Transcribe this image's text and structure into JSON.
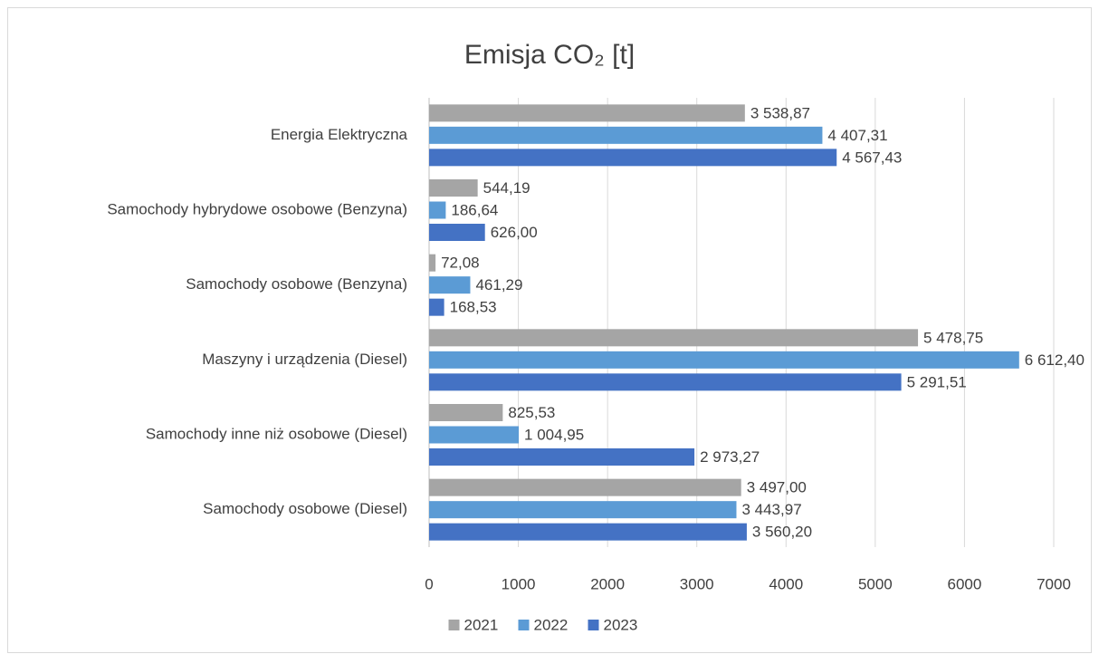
{
  "chart_data": {
    "type": "bar",
    "orientation": "horizontal",
    "title": "Emisja CO₂ [t]",
    "categories": [
      "Energia Elektryczna",
      "Samochody hybrydowe osobowe (Benzyna)",
      "Samochody osobowe (Benzyna)",
      "Maszyny i urządzenia (Diesel)",
      "Samochody inne niż osobowe (Diesel)",
      "Samochody osobowe (Diesel)"
    ],
    "series": [
      {
        "name": "2021",
        "color": "#a5a5a5",
        "values": [
          3538.87,
          544.19,
          72.08,
          5478.75,
          825.53,
          3497.0
        ],
        "value_labels": [
          "3 538,87",
          "544,19",
          "72,08",
          "5 478,75",
          "825,53",
          "3 497,00"
        ]
      },
      {
        "name": "2022",
        "color": "#5b9bd5",
        "values": [
          4407.31,
          186.64,
          461.29,
          6612.4,
          1004.95,
          3443.97
        ],
        "value_labels": [
          "4 407,31",
          "186,64",
          "461,29",
          "6 612,40",
          "1 004,95",
          "3 443,97"
        ]
      },
      {
        "name": "2023",
        "color": "#4472c4",
        "values": [
          4567.43,
          626.0,
          168.53,
          5291.51,
          2973.27,
          3560.2
        ],
        "value_labels": [
          "4 567,43",
          "626,00",
          "168,53",
          "5 291,51",
          "2 973,27",
          "3 560,20"
        ]
      }
    ],
    "xlim": [
      0,
      7000
    ],
    "xticks": [
      0,
      1000,
      2000,
      3000,
      4000,
      5000,
      6000,
      7000
    ],
    "grid": true,
    "legend": "bottom"
  }
}
